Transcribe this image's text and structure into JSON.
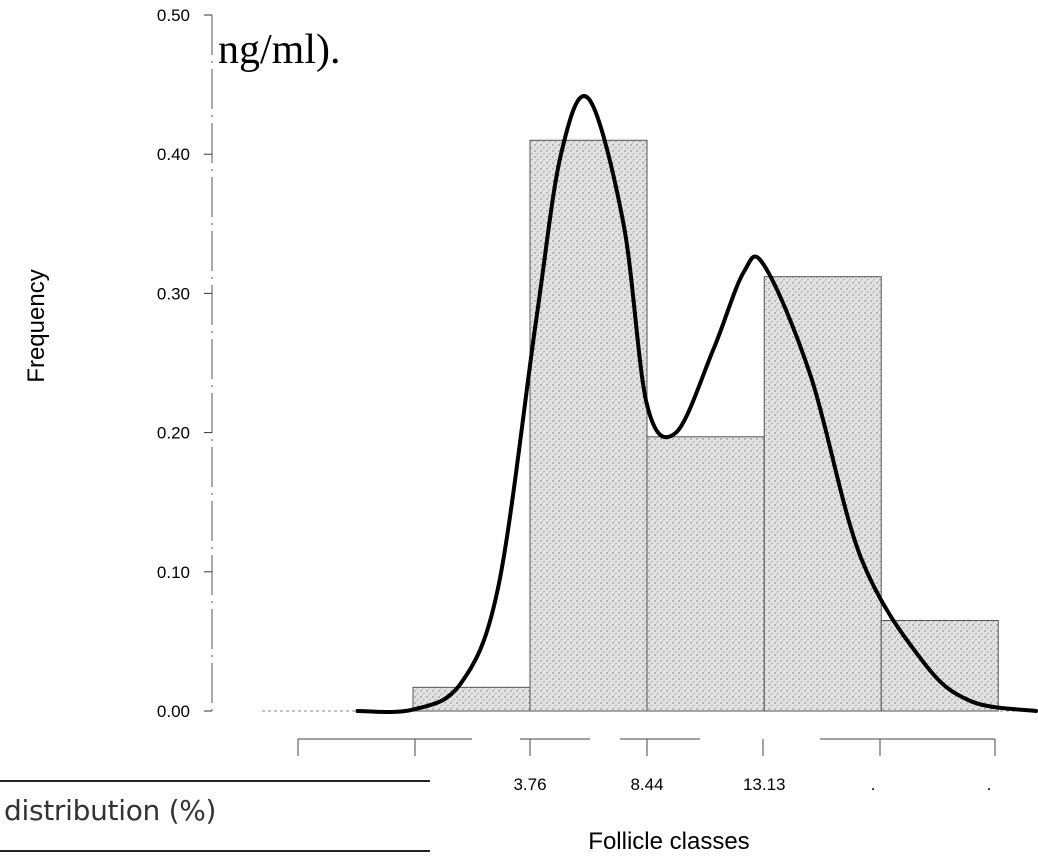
{
  "page": {
    "title_fragment": "ng/ml).",
    "table_fragment": "distribution (%)"
  },
  "chart_data": {
    "type": "bar",
    "xlabel": "Follicle classes",
    "ylabel": "Frequency",
    "ylim": [
      0,
      0.5
    ],
    "yticks": [
      "0.00",
      "0.10",
      "0.20",
      "0.30",
      "0.40",
      "0.50"
    ],
    "xtick_labels": [
      "3.76",
      "8.44",
      "13.13",
      ".",
      "."
    ],
    "bins": [
      {
        "start": -5.6,
        "end": -0.92,
        "value": 0.0
      },
      {
        "start": -0.92,
        "end": 3.76,
        "value": 0.017
      },
      {
        "start": 3.76,
        "end": 8.44,
        "value": 0.41
      },
      {
        "start": 8.44,
        "end": 13.13,
        "value": 0.197
      },
      {
        "start": 13.13,
        "end": 17.81,
        "value": 0.312
      },
      {
        "start": 17.81,
        "end": 22.49,
        "value": 0.065
      }
    ],
    "density_curve": {
      "x": [
        -3.14,
        -0.92,
        1.0,
        2.5,
        4.0,
        5.0,
        6.1,
        7.5,
        8.44,
        9.6,
        11.1,
        12.3,
        13.13,
        15.0,
        17.0,
        19.5,
        21.4,
        24.0
      ],
      "y": [
        0.0,
        0.001,
        0.02,
        0.09,
        0.28,
        0.4,
        0.44,
        0.35,
        0.22,
        0.2,
        0.26,
        0.315,
        0.32,
        0.24,
        0.11,
        0.035,
        0.007,
        0.0
      ]
    },
    "fill_color": "#d8d8d8",
    "grid": false,
    "legend": "none"
  }
}
